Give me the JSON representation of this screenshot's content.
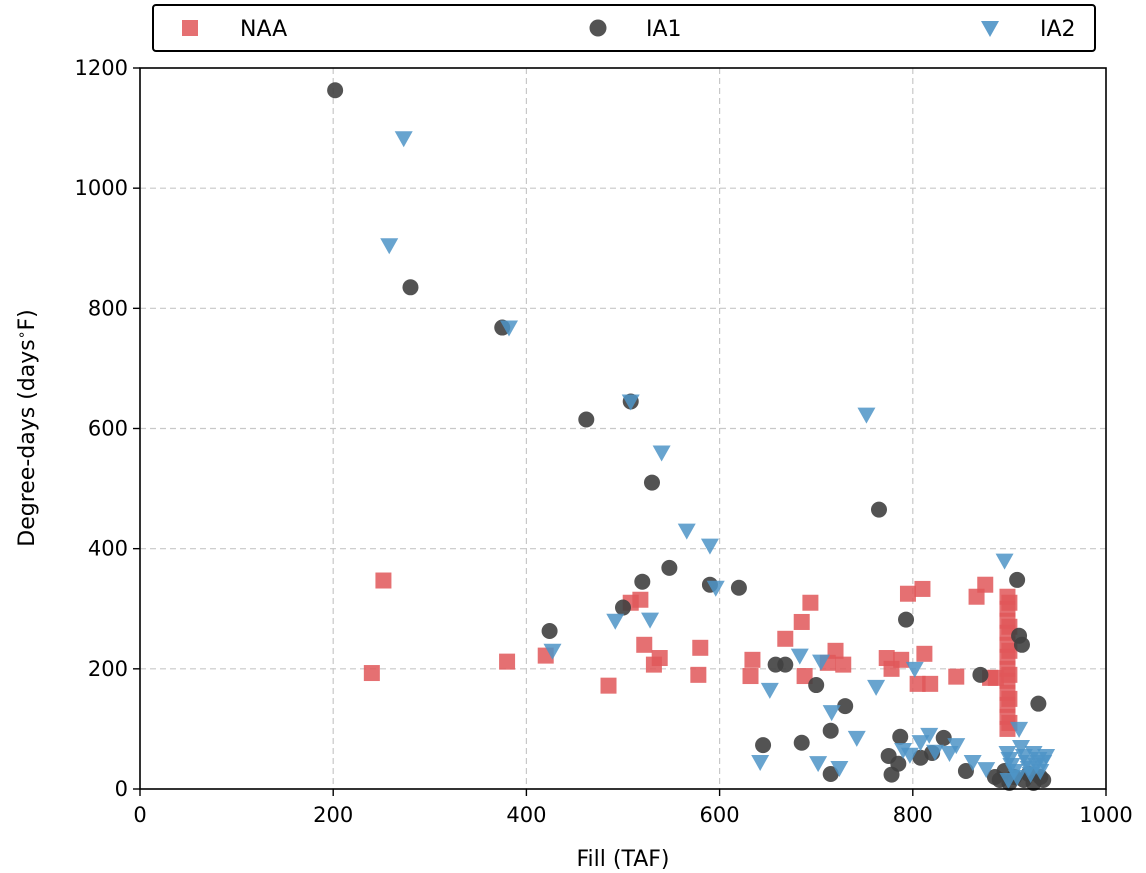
{
  "chart_data": {
    "type": "scatter",
    "title": "",
    "xlabel": "Fill (TAF)",
    "ylabel": "Degree-days (days$^\\circ$F)",
    "ylabel_main": "Degree-days (days",
    "ylabel_unit": "F)",
    "xlim": [
      0,
      1000
    ],
    "ylim": [
      0,
      1200
    ],
    "x_ticks": [
      0,
      200,
      400,
      600,
      800,
      1000
    ],
    "y_ticks": [
      0,
      200,
      400,
      600,
      800,
      1000,
      1200
    ],
    "x_tick_labels": [
      "0",
      "200",
      "400",
      "600",
      "800",
      "1000"
    ],
    "y_tick_labels": [
      "0",
      "200",
      "400",
      "600",
      "800",
      "1000",
      "1200"
    ],
    "grid": true,
    "legend_position": "top, outside, horizontal",
    "series": [
      {
        "name": "NAA",
        "marker": "square",
        "color": "#e15759",
        "points": [
          [
            252,
            347
          ],
          [
            240,
            193
          ],
          [
            380,
            212
          ],
          [
            420,
            222
          ],
          [
            485,
            172
          ],
          [
            508,
            310
          ],
          [
            518,
            315
          ],
          [
            522,
            240
          ],
          [
            532,
            207
          ],
          [
            538,
            218
          ],
          [
            578,
            190
          ],
          [
            580,
            235
          ],
          [
            632,
            188
          ],
          [
            634,
            215
          ],
          [
            668,
            250
          ],
          [
            685,
            278
          ],
          [
            688,
            188
          ],
          [
            694,
            310
          ],
          [
            712,
            210
          ],
          [
            720,
            230
          ],
          [
            728,
            207
          ],
          [
            773,
            218
          ],
          [
            778,
            200
          ],
          [
            788,
            215
          ],
          [
            795,
            325
          ],
          [
            805,
            175
          ],
          [
            810,
            333
          ],
          [
            812,
            225
          ],
          [
            818,
            175
          ],
          [
            845,
            187
          ],
          [
            866,
            320
          ],
          [
            875,
            340
          ],
          [
            880,
            185
          ],
          [
            886,
            185
          ],
          [
            898,
            320
          ],
          [
            898,
            300
          ],
          [
            898,
            280
          ],
          [
            898,
            260
          ],
          [
            898,
            240
          ],
          [
            898,
            220
          ],
          [
            898,
            200
          ],
          [
            898,
            180
          ],
          [
            898,
            160
          ],
          [
            898,
            140
          ],
          [
            898,
            120
          ],
          [
            898,
            100
          ],
          [
            900,
            310
          ],
          [
            900,
            270
          ],
          [
            900,
            230
          ],
          [
            900,
            190
          ],
          [
            900,
            150
          ],
          [
            900,
            110
          ]
        ]
      },
      {
        "name": "IA1",
        "marker": "circle",
        "color": "#404040",
        "points": [
          [
            202,
            1163
          ],
          [
            280,
            835
          ],
          [
            375,
            768
          ],
          [
            462,
            615
          ],
          [
            508,
            645
          ],
          [
            530,
            510
          ],
          [
            548,
            368
          ],
          [
            520,
            345
          ],
          [
            500,
            302
          ],
          [
            424,
            263
          ],
          [
            590,
            340
          ],
          [
            620,
            335
          ],
          [
            765,
            465
          ],
          [
            793,
            282
          ],
          [
            658,
            207
          ],
          [
            668,
            207
          ],
          [
            700,
            173
          ],
          [
            730,
            138
          ],
          [
            715,
            97
          ],
          [
            645,
            73
          ],
          [
            685,
            77
          ],
          [
            715,
            25
          ],
          [
            775,
            55
          ],
          [
            778,
            24
          ],
          [
            785,
            42
          ],
          [
            787,
            87
          ],
          [
            808,
            52
          ],
          [
            820,
            60
          ],
          [
            832,
            85
          ],
          [
            855,
            30
          ],
          [
            870,
            190
          ],
          [
            885,
            20
          ],
          [
            890,
            15
          ],
          [
            895,
            30
          ],
          [
            900,
            10
          ],
          [
            905,
            20
          ],
          [
            908,
            348
          ],
          [
            910,
            255
          ],
          [
            913,
            240
          ],
          [
            915,
            15
          ],
          [
            920,
            25
          ],
          [
            925,
            10
          ],
          [
            930,
            142
          ],
          [
            932,
            20
          ],
          [
            935,
            15
          ]
        ]
      },
      {
        "name": "IA2",
        "marker": "triangle-down",
        "color": "#4e94c7",
        "points": [
          [
            273,
            1083
          ],
          [
            258,
            905
          ],
          [
            382,
            768
          ],
          [
            508,
            645
          ],
          [
            540,
            560
          ],
          [
            566,
            430
          ],
          [
            590,
            405
          ],
          [
            596,
            335
          ],
          [
            492,
            280
          ],
          [
            528,
            282
          ],
          [
            427,
            230
          ],
          [
            752,
            623
          ],
          [
            762,
            170
          ],
          [
            652,
            165
          ],
          [
            642,
            45
          ],
          [
            683,
            222
          ],
          [
            705,
            212
          ],
          [
            716,
            128
          ],
          [
            702,
            43
          ],
          [
            724,
            35
          ],
          [
            742,
            85
          ],
          [
            790,
            65
          ],
          [
            797,
            57
          ],
          [
            802,
            200
          ],
          [
            808,
            78
          ],
          [
            817,
            90
          ],
          [
            823,
            62
          ],
          [
            838,
            60
          ],
          [
            845,
            73
          ],
          [
            862,
            45
          ],
          [
            876,
            33
          ],
          [
            895,
            380
          ],
          [
            898,
            60
          ],
          [
            900,
            50
          ],
          [
            902,
            40
          ],
          [
            905,
            30
          ],
          [
            908,
            20
          ],
          [
            910,
            100
          ],
          [
            912,
            70
          ],
          [
            915,
            55
          ],
          [
            918,
            45
          ],
          [
            920,
            35
          ],
          [
            922,
            25
          ],
          [
            925,
            60
          ],
          [
            928,
            40
          ],
          [
            930,
            50
          ],
          [
            932,
            30
          ],
          [
            935,
            45
          ],
          [
            938,
            55
          ],
          [
            899,
            15
          ]
        ]
      }
    ]
  }
}
